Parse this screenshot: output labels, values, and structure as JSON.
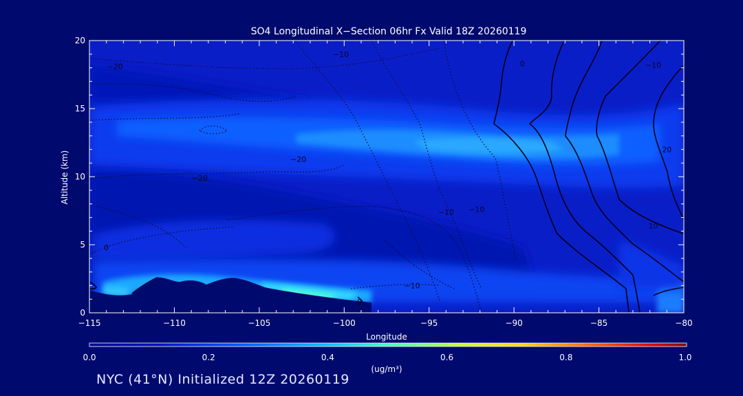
{
  "chart_data": {
    "type": "heatmap",
    "title": "SO4 Longitudinal X−Section 06hr  Fx Valid 18Z 20260119",
    "xlabel": "Longitude",
    "ylabel": "Altitude (km)",
    "xlim": [
      -115,
      -80
    ],
    "ylim": [
      0,
      20
    ],
    "x_ticks": [
      -115,
      -110,
      -105,
      -100,
      -95,
      -90,
      -85,
      -80
    ],
    "x_tick_labels": [
      "−115",
      "−110",
      "−105",
      "−100",
      "−95",
      "−90",
      "−85",
      "−80"
    ],
    "y_ticks": [
      0,
      5,
      10,
      15,
      20
    ],
    "y_tick_labels": [
      "0",
      "5",
      "10",
      "15",
      "20"
    ],
    "colorbar": {
      "min": 0.0,
      "max": 1.0,
      "ticks": [
        "0.0",
        "0.2",
        "0.4",
        "0.6",
        "0.8",
        "1.0"
      ],
      "units": "(ug/m³)"
    },
    "concentration_features": [
      {
        "name": "upper-level band",
        "lon_range": [
          -113,
          -80
        ],
        "alt_range": [
          11,
          14
        ],
        "peak_value": 0.3
      },
      {
        "name": "low-level plume",
        "lon_range": [
          -114,
          -99
        ],
        "alt_range": [
          1,
          2.5
        ],
        "peak_value": 0.37
      },
      {
        "name": "eastern low-level",
        "lon_range": [
          -82,
          -80
        ],
        "alt_range": [
          0.5,
          2
        ],
        "peak_value": 0.25
      }
    ],
    "contour_labels": [
      {
        "text": "−20",
        "lon": -113.5,
        "alt": 18.1
      },
      {
        "text": "−10",
        "lon": -100.2,
        "alt": 19.0
      },
      {
        "text": "0",
        "lon": -89.5,
        "alt": 18.3
      },
      {
        "text": "−10",
        "lon": -81.8,
        "alt": 18.2
      },
      {
        "text": "−20",
        "lon": -102.7,
        "alt": 11.3
      },
      {
        "text": "−20",
        "lon": -108.5,
        "alt": 9.9
      },
      {
        "text": "20",
        "lon": -81.0,
        "alt": 12.0
      },
      {
        "text": "−10",
        "lon": -94.0,
        "alt": 7.4
      },
      {
        "text": "−10",
        "lon": -92.2,
        "alt": 7.6
      },
      {
        "text": "10",
        "lon": -81.8,
        "alt": 6.4
      },
      {
        "text": "0",
        "lon": -114.0,
        "alt": 4.8
      },
      {
        "text": "−10",
        "lon": -96.0,
        "alt": 2.0
      },
      {
        "text": "0",
        "lon": -99.1,
        "alt": 0.8
      }
    ]
  },
  "footer": "NYC (41°N) Initialized 12Z 20260119"
}
